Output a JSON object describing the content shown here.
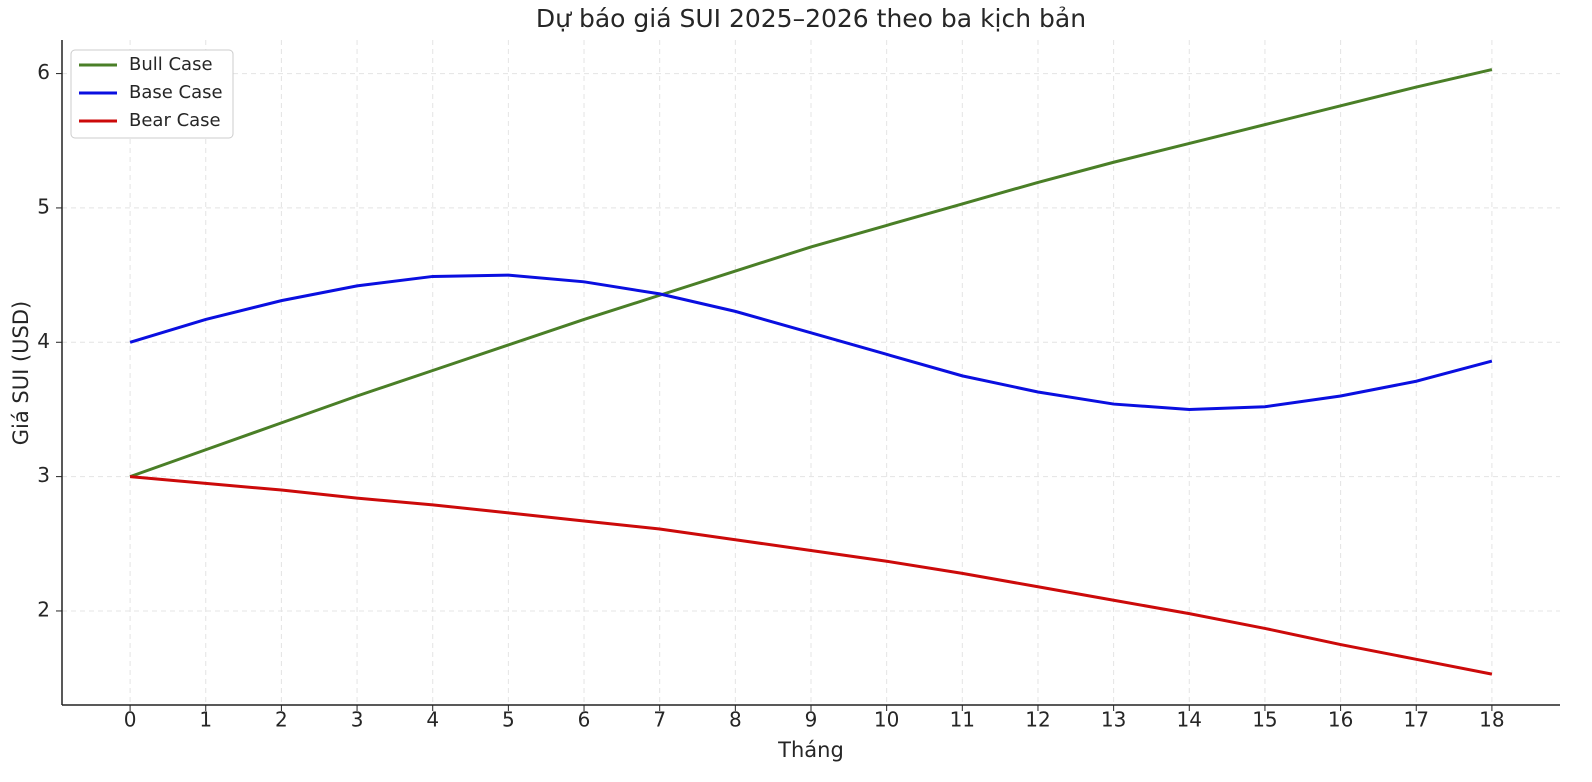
{
  "chart_data": {
    "type": "line",
    "title": "Dự báo giá SUI 2025–2026 theo ba kịch bản",
    "x_label": "Tháng",
    "y_label": "Giá SUI (USD)",
    "x": [
      0,
      1,
      2,
      3,
      4,
      5,
      6,
      7,
      8,
      9,
      10,
      11,
      12,
      13,
      14,
      15,
      16,
      17,
      18
    ],
    "series": [
      {
        "name": "Bull Case",
        "color": "#4a7f27",
        "values": [
          3.0,
          3.2,
          3.4,
          3.6,
          3.79,
          3.98,
          4.17,
          4.35,
          4.53,
          4.71,
          4.87,
          5.03,
          5.19,
          5.34,
          5.48,
          5.62,
          5.76,
          5.9,
          6.03
        ]
      },
      {
        "name": "Base Case",
        "color": "#0a0fe0",
        "values": [
          4.0,
          4.17,
          4.31,
          4.42,
          4.49,
          4.5,
          4.45,
          4.36,
          4.23,
          4.07,
          3.91,
          3.75,
          3.63,
          3.54,
          3.5,
          3.52,
          3.6,
          3.71,
          3.86
        ]
      },
      {
        "name": "Bear Case",
        "color": "#cc0a0a",
        "values": [
          3.0,
          2.95,
          2.9,
          2.84,
          2.79,
          2.73,
          2.67,
          2.61,
          2.53,
          2.45,
          2.37,
          2.28,
          2.18,
          2.08,
          1.98,
          1.87,
          1.75,
          1.64,
          1.53
        ]
      }
    ],
    "xlim": [
      -0.9,
      18.9
    ],
    "xticks": [
      0,
      1,
      2,
      3,
      4,
      5,
      6,
      7,
      8,
      9,
      10,
      11,
      12,
      13,
      14,
      15,
      16,
      17,
      18
    ],
    "ylim": [
      1.3,
      6.25
    ],
    "yticks": [
      2,
      3,
      4,
      5,
      6
    ],
    "grid": true,
    "legend": "upper-left"
  }
}
